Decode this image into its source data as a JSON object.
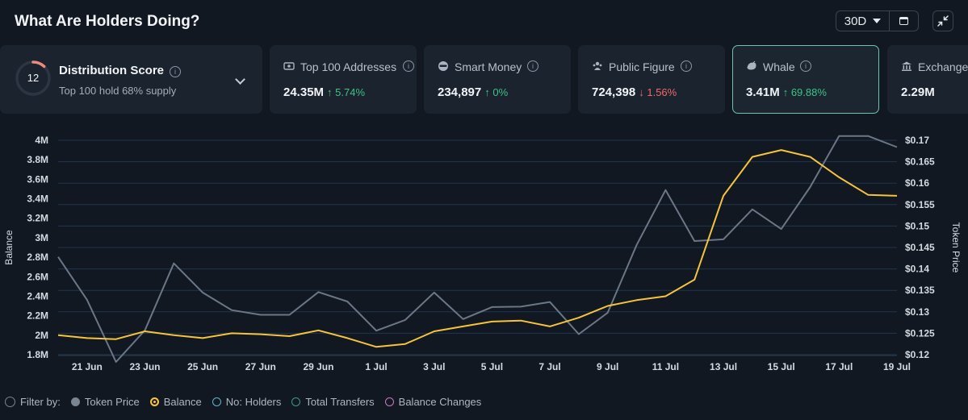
{
  "header": {
    "title": "What Are Holders Doing?",
    "range": "30D"
  },
  "distribution": {
    "score": "12",
    "title": "Distribution Score",
    "subtitle": "Top 100 hold 68% supply",
    "score_fraction": 0.12
  },
  "cards": [
    {
      "label": "Top 100 Addresses",
      "value": "24.35M",
      "change": "5.74%",
      "dir": "up",
      "icon": "money-icon"
    },
    {
      "label": "Smart Money",
      "value": "234,897",
      "change": "0%",
      "dir": "up",
      "icon": "smart-money-icon"
    },
    {
      "label": "Public Figure",
      "value": "724,398",
      "change": "1.56%",
      "dir": "down",
      "icon": "public-figure-icon"
    },
    {
      "label": "Whale",
      "value": "3.41M",
      "change": "69.88%",
      "dir": "up",
      "icon": "whale-icon",
      "active": true
    },
    {
      "label": "Exchange",
      "value": "2.29M",
      "icon": "bank-icon"
    }
  ],
  "legend": {
    "filter_label": "Filter by:",
    "items": [
      "Token Price",
      "Balance",
      "No: Holders",
      "Total Transfers",
      "Balance Changes"
    ]
  },
  "colors": {
    "price": "#6b7787",
    "balance": "#f6c43b",
    "up": "#3ec287",
    "down": "#ef6a6a",
    "accent": "#6fc2ad"
  },
  "chart_data": {
    "type": "line",
    "ylabel": "Balance",
    "y2label": "Token Price",
    "x_ticks": [
      "21 Jun",
      "23 Jun",
      "25 Jun",
      "27 Jun",
      "29 Jun",
      "1 Jul",
      "3 Jul",
      "5 Jul",
      "7 Jul",
      "9 Jul",
      "11 Jul",
      "13 Jul",
      "15 Jul",
      "17 Jul",
      "19 Jul"
    ],
    "y_ticks": [
      "4M",
      "3.8M",
      "3.6M",
      "3.4M",
      "3.2M",
      "3M",
      "2.8M",
      "2.6M",
      "2.4M",
      "2.2M",
      "2M",
      "1.8M"
    ],
    "y2_ticks": [
      "$0.17",
      "$0.165",
      "$0.16",
      "$0.155",
      "$0.15",
      "$0.145",
      "$0.14",
      "$0.135",
      "$0.13",
      "$0.125",
      "$0.12"
    ],
    "ylim": [
      1.8,
      4.0
    ],
    "y2lim": [
      0.12,
      0.17
    ],
    "x": [
      "20 Jun",
      "21 Jun",
      "22 Jun",
      "23 Jun",
      "24 Jun",
      "25 Jun",
      "26 Jun",
      "27 Jun",
      "28 Jun",
      "29 Jun",
      "30 Jun",
      "1 Jul",
      "2 Jul",
      "3 Jul",
      "4 Jul",
      "5 Jul",
      "6 Jul",
      "7 Jul",
      "8 Jul",
      "9 Jul",
      "10 Jul",
      "11 Jul",
      "12 Jul",
      "13 Jul",
      "14 Jul",
      "15 Jul",
      "16 Jul",
      "17 Jul",
      "18 Jul",
      "19 Jul"
    ],
    "series": [
      {
        "name": "Token Price",
        "axis": "right",
        "values": [
          0.1428,
          0.1328,
          0.1183,
          0.1257,
          0.1413,
          0.1345,
          0.1304,
          0.1293,
          0.1293,
          0.1346,
          0.1324,
          0.1256,
          0.1281,
          0.1345,
          0.1283,
          0.1311,
          0.1312,
          0.1323,
          0.1248,
          0.1298,
          0.1456,
          0.1584,
          0.1465,
          0.1469,
          0.1539,
          0.1493,
          0.1591,
          0.171,
          0.171,
          0.1684
        ]
      },
      {
        "name": "Balance",
        "axis": "left",
        "values": [
          2.0,
          1.97,
          1.96,
          2.04,
          2.0,
          1.97,
          2.02,
          2.01,
          1.99,
          2.05,
          1.97,
          1.88,
          1.91,
          2.04,
          2.09,
          2.14,
          2.15,
          2.09,
          2.18,
          2.3,
          2.36,
          2.4,
          2.57,
          3.43,
          3.83,
          3.9,
          3.83,
          3.62,
          3.44,
          3.43
        ]
      }
    ],
    "grid": true
  }
}
